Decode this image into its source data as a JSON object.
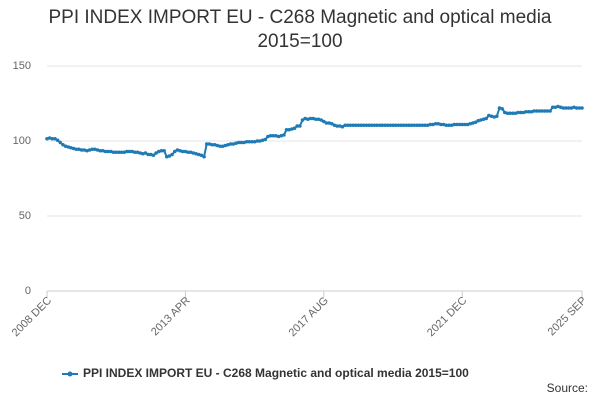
{
  "chart_data": {
    "type": "line",
    "title": "PPI INDEX IMPORT EU - C268 Magnetic and optical media 2015=100",
    "source_label": "Source:",
    "categories": [
      "2008 DEC",
      null,
      null,
      null,
      null,
      null,
      null,
      null,
      null,
      null,
      null,
      null,
      null,
      null,
      null,
      null,
      null,
      null,
      null,
      null,
      null,
      null,
      null,
      null,
      null,
      null,
      null,
      null,
      null,
      null,
      null,
      null,
      null,
      null,
      null,
      null,
      null,
      null,
      null,
      null,
      null,
      null,
      null,
      null,
      null,
      null,
      null,
      null,
      null,
      null,
      null,
      null,
      "2013 APR",
      null,
      null,
      null,
      null,
      null,
      null,
      null,
      null,
      null,
      null,
      null,
      null,
      null,
      null,
      null,
      null,
      null,
      null,
      null,
      null,
      null,
      null,
      null,
      null,
      null,
      null,
      null,
      null,
      null,
      null,
      null,
      null,
      null,
      null,
      null,
      null,
      null,
      null,
      null,
      null,
      null,
      null,
      null,
      null,
      null,
      null,
      null,
      null,
      null,
      null,
      null,
      "2017 AUG",
      null,
      null,
      null,
      null,
      null,
      null,
      null,
      null,
      null,
      null,
      null,
      null,
      null,
      null,
      null,
      null,
      null,
      null,
      null,
      null,
      null,
      null,
      null,
      null,
      null,
      null,
      null,
      null,
      null,
      null,
      null,
      null,
      null,
      null,
      null,
      null,
      null,
      null,
      null,
      null,
      null,
      null,
      null,
      null,
      null,
      null,
      null,
      null,
      null,
      null,
      null,
      "2021 DEC",
      null,
      null,
      null,
      null,
      null,
      null,
      null,
      null,
      null,
      null,
      null,
      null,
      null,
      null,
      null,
      null,
      null,
      null,
      null,
      null,
      null,
      null,
      null,
      null,
      null,
      null,
      null,
      null,
      null,
      null,
      null,
      null,
      null,
      null,
      null,
      null,
      null,
      null,
      null,
      null,
      null,
      null,
      null,
      null,
      "2025 SEP"
    ],
    "series": [
      {
        "name": "PPI INDEX IMPORT EU - C268 Magnetic and optical media 2015=100",
        "color": "#1f7bb6",
        "values": [
          101.5,
          102,
          101.5,
          101.5,
          100.5,
          99,
          97.5,
          96.5,
          96,
          95.5,
          95,
          94.5,
          94.5,
          94,
          94,
          93.5,
          94,
          94.5,
          94.5,
          94,
          93.5,
          93.5,
          93,
          93,
          93,
          92.5,
          92.5,
          92.5,
          92.5,
          92.5,
          93,
          93,
          93,
          92.5,
          92.5,
          92,
          91.5,
          92,
          91,
          91,
          90.5,
          92,
          93,
          93.5,
          93.5,
          89.5,
          90,
          91,
          93,
          94,
          93.5,
          93,
          93,
          92.5,
          92.5,
          92,
          91.5,
          91,
          90.5,
          89.5,
          98,
          98,
          97.5,
          97.5,
          97,
          96.5,
          96.5,
          97,
          97.5,
          98,
          98,
          98.5,
          99,
          99,
          99,
          99.5,
          99.5,
          99.5,
          99.5,
          100,
          100,
          100.5,
          101,
          103,
          103.5,
          103.5,
          103.5,
          103,
          103.5,
          104,
          107.5,
          107.5,
          108,
          108.5,
          110,
          110,
          114,
          115,
          114.5,
          115,
          115,
          114.5,
          114.5,
          114,
          113,
          112,
          112,
          111.5,
          110.5,
          110,
          110,
          109.5,
          110.5,
          110.5,
          110.5,
          110.5,
          110.5,
          110.5,
          110.5,
          110.5,
          110.5,
          110.5,
          110.5,
          110.5,
          110.5,
          110.5,
          110.5,
          110.5,
          110.5,
          110.5,
          110.5,
          110.5,
          110.5,
          110.5,
          110.5,
          110.5,
          110.5,
          110.5,
          110.5,
          110.5,
          110.5,
          110.5,
          110.5,
          110.5,
          111,
          111,
          111.5,
          111.5,
          111,
          111,
          110.5,
          110.5,
          110.5,
          111,
          111,
          111,
          111,
          111,
          111,
          111.5,
          112,
          112.5,
          113.5,
          114,
          114.5,
          115,
          117,
          116.5,
          116,
          116.5,
          122,
          121.5,
          119,
          118.5,
          118.5,
          118.5,
          118.5,
          119,
          119,
          119,
          119.5,
          119.5,
          119.5,
          120,
          120,
          120,
          120,
          120,
          120,
          120,
          122.5,
          122.5,
          123,
          122.5,
          122,
          122,
          122,
          122,
          122.5,
          122,
          122,
          122
        ]
      }
    ],
    "ylim": [
      0,
      150
    ],
    "yticks": [
      0,
      50,
      100,
      150
    ],
    "grid": true
  }
}
